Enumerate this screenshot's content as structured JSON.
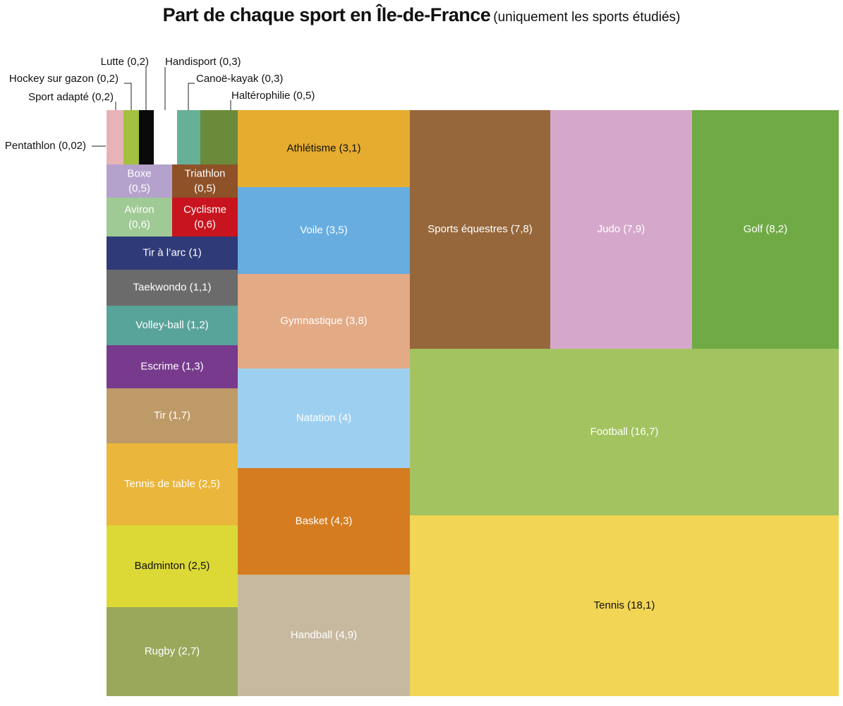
{
  "title": "Part de chaque sport en Île-de-France",
  "subtitle": "(uniquement les sports étudiés)",
  "chart_data": {
    "type": "treemap",
    "title": "Part de chaque sport en Île-de-France",
    "subtitle": "(uniquement les sports étudiés)",
    "items": [
      {
        "name": "Pentathlon",
        "label": "Pentathlon (0,02)",
        "value": 0.02,
        "color": "#e8b3b6"
      },
      {
        "name": "Sport adapté",
        "label": "Sport adapté (0,2)",
        "value": 0.2,
        "color": "#e8b3b6"
      },
      {
        "name": "Hockey sur gazon",
        "label": "Hockey sur gazon (0,2)",
        "value": 0.2,
        "color": "#a3c040"
      },
      {
        "name": "Lutte",
        "label": "Lutte (0,2)",
        "value": 0.2,
        "color": "#0a0a0a"
      },
      {
        "name": "Handisport",
        "label": "Handisport (0,3)",
        "value": 0.3,
        "color": "#ffffff"
      },
      {
        "name": "Canoë-kayak",
        "label": "Canoë-kayak (0,3)",
        "value": 0.3,
        "color": "#66b098"
      },
      {
        "name": "Haltérophilie",
        "label": "Haltérophilie (0,5)",
        "value": 0.5,
        "color": "#6b8a3a"
      },
      {
        "name": "Boxe",
        "label": "Boxe",
        "label2": "(0,5)",
        "value": 0.5,
        "color": "#b5a2cc"
      },
      {
        "name": "Triathlon",
        "label": "Triathlon",
        "label2": "(0,5)",
        "value": 0.5,
        "color": "#8e5128"
      },
      {
        "name": "Aviron",
        "label": "Aviron",
        "label2": "(0,6)",
        "value": 0.6,
        "color": "#a0ca95"
      },
      {
        "name": "Cyclisme",
        "label": "Cyclisme",
        "label2": "(0,6)",
        "value": 0.6,
        "color": "#c8141e"
      },
      {
        "name": "Tir à l'arc",
        "label": "Tir à l’arc (1)",
        "value": 1,
        "color": "#2f3a78"
      },
      {
        "name": "Taekwondo",
        "label": "Taekwondo (1,1)",
        "value": 1.1,
        "color": "#6b6b6b"
      },
      {
        "name": "Volley-ball",
        "label": "Volley-ball (1,2)",
        "value": 1.2,
        "color": "#58a39a"
      },
      {
        "name": "Escrime",
        "label": "Escrime (1,3)",
        "value": 1.3,
        "color": "#773a8d"
      },
      {
        "name": "Tir",
        "label": "Tir (1,7)",
        "value": 1.7,
        "color": "#bd9a67"
      },
      {
        "name": "Tennis de table",
        "label": "Tennis de table (2,5)",
        "value": 2.5,
        "color": "#eab63c"
      },
      {
        "name": "Badminton",
        "label": "Badminton (2,5)",
        "value": 2.5,
        "color": "#dcd937"
      },
      {
        "name": "Rugby",
        "label": "Rugby (2,7)",
        "value": 2.7,
        "color": "#9aa85c"
      },
      {
        "name": "Athlétisme",
        "label": "Athlétisme (3,1)",
        "value": 3.1,
        "color": "#e6ac2f"
      },
      {
        "name": "Voile",
        "label": "Voile (3,5)",
        "value": 3.5,
        "color": "#67ade0"
      },
      {
        "name": "Gymnastique",
        "label": "Gymnastique (3,8)",
        "value": 3.8,
        "color": "#e3aa86"
      },
      {
        "name": "Natation",
        "label": "Natation (4)",
        "value": 4,
        "color": "#9dd0f0"
      },
      {
        "name": "Basket",
        "label": "Basket (4,3)",
        "value": 4.3,
        "color": "#d57c20"
      },
      {
        "name": "Handball",
        "label": "Handball (4,9)",
        "value": 4.9,
        "color": "#c7b9a0"
      },
      {
        "name": "Sports équestres",
        "label": "Sports équestres (7,8)",
        "value": 7.8,
        "color": "#96673b"
      },
      {
        "name": "Judo",
        "label": "Judo (7,9)",
        "value": 7.9,
        "color": "#d5a8cb"
      },
      {
        "name": "Golf",
        "label": "Golf (8,2)",
        "value": 8.2,
        "color": "#6faa45"
      },
      {
        "name": "Football",
        "label": "Football (16,7)",
        "value": 16.7,
        "color": "#a2c360"
      },
      {
        "name": "Tennis",
        "label": "Tennis (18,1)",
        "value": 18.1,
        "color": "#f2d555"
      }
    ]
  }
}
